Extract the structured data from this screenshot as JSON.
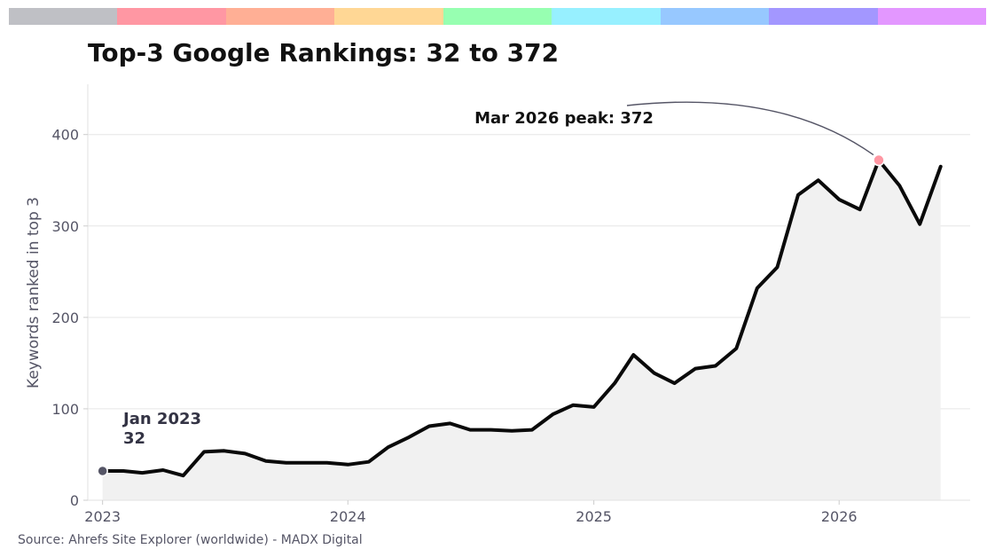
{
  "colors": {
    "rainbow": [
      "#bfc0c5",
      "#ff97a3",
      "#ffaf95",
      "#ffd795",
      "#97ffb1",
      "#97f0ff",
      "#97c8ff",
      "#a397ff",
      "#e397ff"
    ],
    "line": "#0a0a0a",
    "area": "#f1f1f1",
    "start_marker": "#555566",
    "peak_marker": "#ff97a3",
    "grid": "#e6e6e6",
    "tick_text": "#555566",
    "annotation_text": "#111111",
    "start_annotation_text": "#333344"
  },
  "chart_data": {
    "type": "area",
    "title": "Top-3 Google Rankings: 32 to 372",
    "xlabel": "",
    "ylabel": "Keywords ranked in top 3",
    "ylim": [
      0,
      455
    ],
    "yticks": [
      0,
      100,
      200,
      300,
      400
    ],
    "xticks": [
      "2023",
      "2024",
      "2025",
      "2026"
    ],
    "xlim": [
      "2022-12-10",
      "2026-07-15"
    ],
    "grid": "horizontal",
    "x": [
      "2023-01",
      "2023-02",
      "2023-03",
      "2023-04",
      "2023-05",
      "2023-06",
      "2023-07",
      "2023-08",
      "2023-09",
      "2023-10",
      "2023-11",
      "2023-12",
      "2024-01",
      "2024-02",
      "2024-03",
      "2024-04",
      "2024-05",
      "2024-06",
      "2024-07",
      "2024-08",
      "2024-09",
      "2024-10",
      "2024-11",
      "2024-12",
      "2025-01",
      "2025-02",
      "2025-03",
      "2025-04",
      "2025-05",
      "2025-06",
      "2025-07",
      "2025-08",
      "2025-09",
      "2025-10",
      "2025-11",
      "2025-12",
      "2026-01",
      "2026-02",
      "2026-03",
      "2026-04",
      "2026-05",
      "2026-06"
    ],
    "series": [
      {
        "values": [
          32,
          32,
          30,
          33,
          27,
          53,
          54,
          51,
          43,
          41,
          41,
          41,
          39,
          42,
          58,
          69,
          81,
          84,
          77,
          77,
          76,
          77,
          94,
          104,
          102,
          128,
          159,
          139,
          128,
          144,
          147,
          166,
          232,
          255,
          334,
          350,
          329,
          318,
          372,
          344,
          302,
          365
        ]
      }
    ],
    "annotations": [
      {
        "text": "Jan 2023",
        "value": "32",
        "x": "2023-01",
        "y": 32
      },
      {
        "text": "Mar 2026 peak: 372",
        "x": "2026-03",
        "y": 372
      }
    ]
  },
  "footer": {
    "source": "Source: Ahrefs Site Explorer (worldwide) - MADX Digital"
  }
}
